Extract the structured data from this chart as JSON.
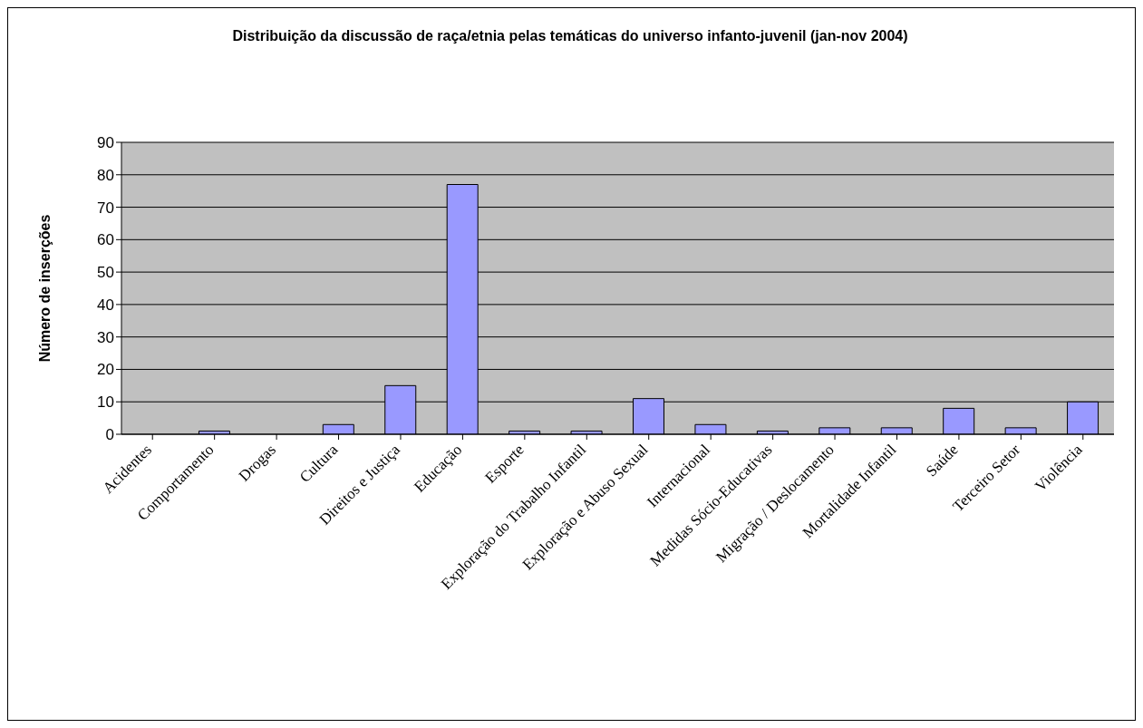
{
  "chart_data": {
    "type": "bar",
    "title": "Distribuição da discussão de raça/etnia pelas temáticas do universo infanto-juvenil (jan-nov 2004)",
    "ylabel": "Número de inserções",
    "categories": [
      "Acidentes",
      "Comportamento",
      "Drogas",
      "Cultura",
      "Direitos e Justiça",
      "Educação",
      "Esporte",
      "Exploração do Trabalho Infantil",
      "Exploração e Abuso Sexual",
      "Internacional",
      "Medidas Sócio-Educativas",
      "Migração / Deslocamento",
      "Mortalidade Infantil",
      "Saúde",
      "Terceiro Setor",
      "Violência"
    ],
    "values": [
      0,
      1,
      0,
      3,
      15,
      77,
      1,
      1,
      11,
      3,
      1,
      2,
      2,
      8,
      2,
      10
    ],
    "color": "#9999ff",
    "ylim": [
      0,
      90
    ],
    "yticks": [
      0,
      10,
      20,
      30,
      40,
      50,
      60,
      70,
      80,
      90
    ],
    "grid": "y"
  }
}
